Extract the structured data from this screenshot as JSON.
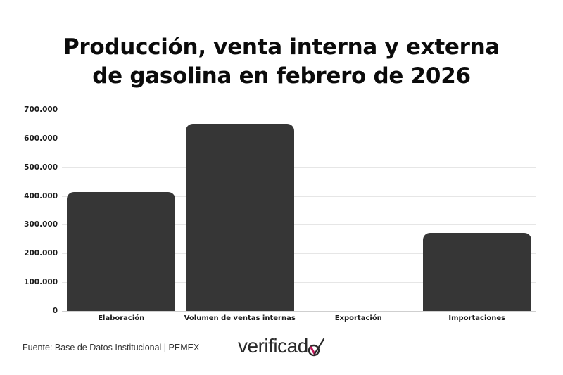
{
  "title": {
    "line1": "Producción, venta interna y externa",
    "line2": "de gasolina en febrero de 2026"
  },
  "chart_data": {
    "type": "bar",
    "title": "Producción, venta interna y externa de gasolina en febrero de 2026",
    "categories": [
      "Elaboración",
      "Volumen de ventas internas",
      "Exportación",
      "Importaciones"
    ],
    "values": [
      413000,
      651000,
      0,
      272000
    ],
    "xlabel": "",
    "ylabel": "",
    "ylim": [
      0,
      700000
    ],
    "yticks": [
      "0",
      "100.000",
      "200.000",
      "300.000",
      "400.000",
      "500.000",
      "600.000",
      "700.000"
    ],
    "grid": true,
    "legend": "none",
    "bar_color": "#363636"
  },
  "footer": {
    "source": "Fuente: Base de Datos Institucional | PEMEX",
    "logo_text": "verificad",
    "logo_accent_color": "#c2185b"
  }
}
